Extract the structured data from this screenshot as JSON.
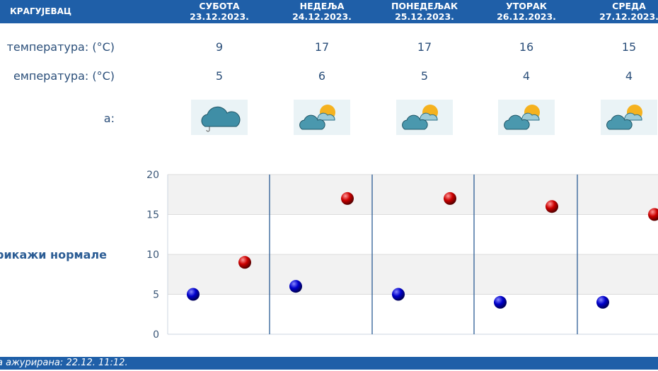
{
  "header": {
    "city": "КРАГУЈЕВАЦ",
    "days": [
      {
        "name": "СУБОТА",
        "date": "23.12.2023."
      },
      {
        "name": "НЕДЕЉА",
        "date": "24.12.2023."
      },
      {
        "name": "ПОНЕДЕЉАК",
        "date": "25.12.2023."
      },
      {
        "name": "УТОРАК",
        "date": "26.12.2023."
      },
      {
        "name": "СРЕДА",
        "date": "27.12.2023."
      }
    ]
  },
  "rows": {
    "max_label": "температура: (°C)",
    "min_label": "емпература: (°C)",
    "weather_label": "а:",
    "max": [
      "9",
      "17",
      "17",
      "16",
      "15"
    ],
    "min": [
      "5",
      "6",
      "5",
      "4",
      "4"
    ],
    "icons": [
      "cloud-rain-icon",
      "partly-cloudy-icon",
      "partly-cloudy-icon",
      "partly-cloudy-icon",
      "partly-cloudy-icon"
    ]
  },
  "normals_link": "рикажи нормале",
  "chart_data": {
    "type": "scatter",
    "ylim": [
      0,
      20
    ],
    "yticks": [
      "0",
      "5",
      "10",
      "15",
      "20"
    ],
    "series": [
      {
        "values": [
          5,
          6,
          5,
          4,
          4
        ],
        "color": "#0000cc"
      },
      {
        "values": [
          9,
          17,
          17,
          16,
          15
        ],
        "color": "#cc0000"
      }
    ]
  },
  "footer": {
    "label": "а ажурирана:",
    "value": "22.12. 11:12."
  }
}
